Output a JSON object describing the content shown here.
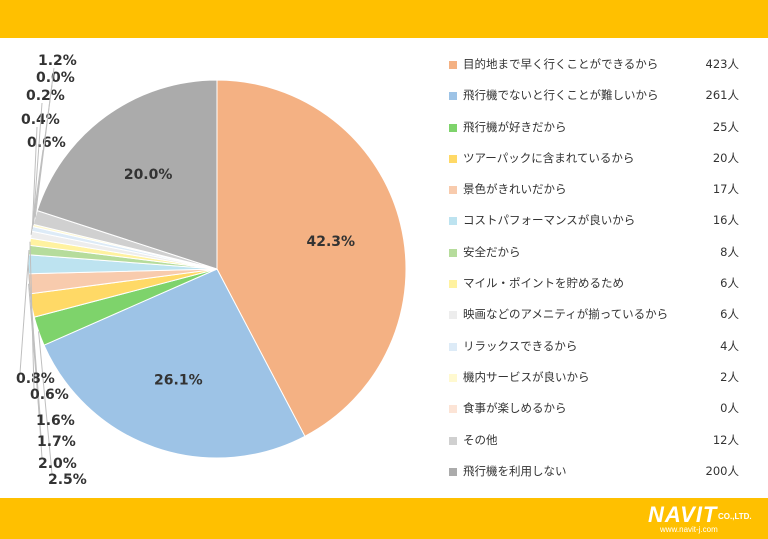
{
  "colors": {
    "band": "#FFC000",
    "slice_stroke": "#ffffff",
    "leader": "#bfbfbf"
  },
  "chart_data": {
    "type": "pie",
    "unit": "人",
    "slices": [
      {
        "label": "目的地まで早く行くことができるから",
        "count": 423,
        "percent_label": "42.3%",
        "value": 42.3,
        "color": "#F4B183"
      },
      {
        "label": "飛行機でないと行くことが難しいから",
        "count": 261,
        "percent_label": "26.1%",
        "value": 26.1,
        "color": "#9DC3E6"
      },
      {
        "label": "飛行機が好きだから",
        "count": 25,
        "percent_label": "2.5%",
        "value": 2.5,
        "color": "#7ED36B"
      },
      {
        "label": "ツアーパックに含まれているから",
        "count": 20,
        "percent_label": "2.0%",
        "value": 2.0,
        "color": "#FFD966"
      },
      {
        "label": "景色がきれいだから",
        "count": 17,
        "percent_label": "1.7%",
        "value": 1.7,
        "color": "#F8CBAD"
      },
      {
        "label": "コストパフォーマンスが良いから",
        "count": 16,
        "percent_label": "1.6%",
        "value": 1.6,
        "color": "#BDE3F0"
      },
      {
        "label": "安全だから",
        "count": 8,
        "percent_label": "0.8%",
        "value": 0.8,
        "color": "#B6DC9C"
      },
      {
        "label": "マイル・ポイントを貯めるため",
        "count": 6,
        "percent_label": "0.6%",
        "value": 0.6,
        "color": "#FFF2A0"
      },
      {
        "label": "映画などのアメニティが揃っているから",
        "count": 6,
        "percent_label": "0.6%",
        "value": 0.6,
        "color": "#EDEDED"
      },
      {
        "label": "リラックスできるから",
        "count": 4,
        "percent_label": "0.4%",
        "value": 0.4,
        "color": "#DDEBF7"
      },
      {
        "label": "機内サービスが良いから",
        "count": 2,
        "percent_label": "0.2%",
        "value": 0.2,
        "color": "#FFF9D0"
      },
      {
        "label": "食事が楽しめるから",
        "count": 0,
        "percent_label": "0.0%",
        "value": 0.0,
        "color": "#FCE4D6"
      },
      {
        "label": "その他",
        "count": 12,
        "percent_label": "1.2%",
        "value": 1.2,
        "color": "#D0D0D0"
      },
      {
        "label": "飛行機を利用しない",
        "count": 200,
        "percent_label": "20.0%",
        "value": 20.0,
        "color": "#ABABAB"
      }
    ]
  },
  "legend": {
    "items": [
      {
        "label": "目的地まで早く行くことができるから",
        "count": "423人"
      },
      {
        "label": "飛行機でないと行くことが難しいから",
        "count": "261人"
      },
      {
        "label": "飛行機が好きだから",
        "count": "25人"
      },
      {
        "label": "ツアーパックに含まれているから",
        "count": "20人"
      },
      {
        "label": "景色がきれいだから",
        "count": "17人"
      },
      {
        "label": "コストパフォーマンスが良いから",
        "count": "16人"
      },
      {
        "label": "安全だから",
        "count": "8人"
      },
      {
        "label": "マイル・ポイントを貯めるため",
        "count": "6人"
      },
      {
        "label": "映画などのアメニティが揃っているから",
        "count": "6人"
      },
      {
        "label": "リラックスできるから",
        "count": "4人"
      },
      {
        "label": "機内サービスが良いから",
        "count": "2人"
      },
      {
        "label": "食事が楽しめるから",
        "count": "0人"
      },
      {
        "label": "その他",
        "count": "12人"
      },
      {
        "label": "飛行機を利用しない",
        "count": "200人"
      }
    ]
  },
  "logo": {
    "name": "NAVIT",
    "suffix": "CO.,LTD.",
    "url": "www.navit-j.com"
  }
}
